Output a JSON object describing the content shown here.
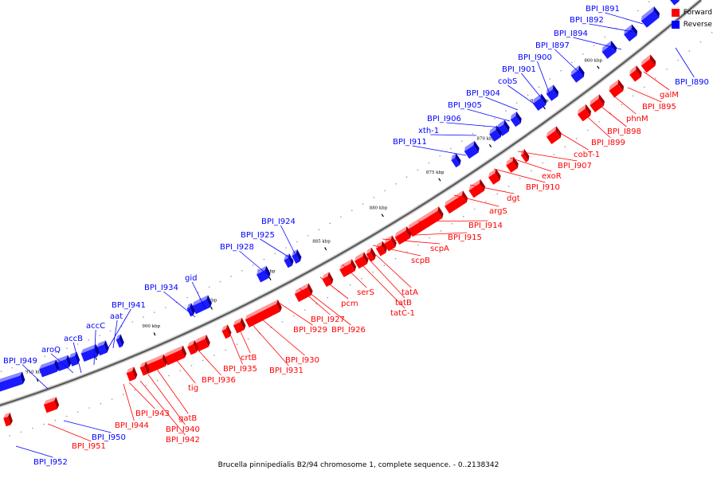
{
  "legend": {
    "forward_label": "Forward",
    "reverse_label": "Reverse",
    "forward_color": "#ff0000",
    "reverse_color": "#0000ff"
  },
  "caption": "Brucella pinnipedialis B2/94 chromosome 1, complete sequence. - 0..2138342",
  "ticks": [
    "860 kbp",
    "865 kbp",
    "870 kbp",
    "875 kbp",
    "880 kbp",
    "885 kbp",
    "890 kbp",
    "895 kbp",
    "900 kbp",
    "905 kbp",
    "910 kbp"
  ],
  "reverse_genes": [
    "BPI_I891",
    "BPI_I892",
    "BPI_I894",
    "BPI_I897",
    "BPI_I900",
    "BPI_I901",
    "cobS",
    "BPI_I904",
    "BPI_I905",
    "BPI_I906",
    "xth-1",
    "BPI_I911",
    "BPI_I924",
    "BPI_I925",
    "BPI_I928",
    "gid",
    "BPI_I934",
    "aat",
    "BPI_I941",
    "accC",
    "accB",
    "aroQ",
    "BPI_I949",
    "BPI_I890",
    "BPI_I950",
    "BPI_I952"
  ],
  "forward_genes": [
    "galM",
    "BPI_I895",
    "phnM",
    "BPI_I898",
    "BPI_I899",
    "cobT-1",
    "BPI_I907",
    "exoR",
    "BPI_I910",
    "dgt",
    "argS",
    "BPI_I914",
    "BPI_I915",
    "scpA",
    "scpB",
    "tatA",
    "tatB",
    "tatC-1",
    "serS",
    "pcm",
    "BPI_I927",
    "BPI_I926",
    "BPI_I929",
    "BPI_I930",
    "BPI_I931",
    "crtB",
    "BPI_I935",
    "BPI_I936",
    "tig",
    "gatB",
    "BPI_I940",
    "BPI_I942",
    "BPI_I943",
    "BPI_I944",
    "BPI_I951"
  ]
}
